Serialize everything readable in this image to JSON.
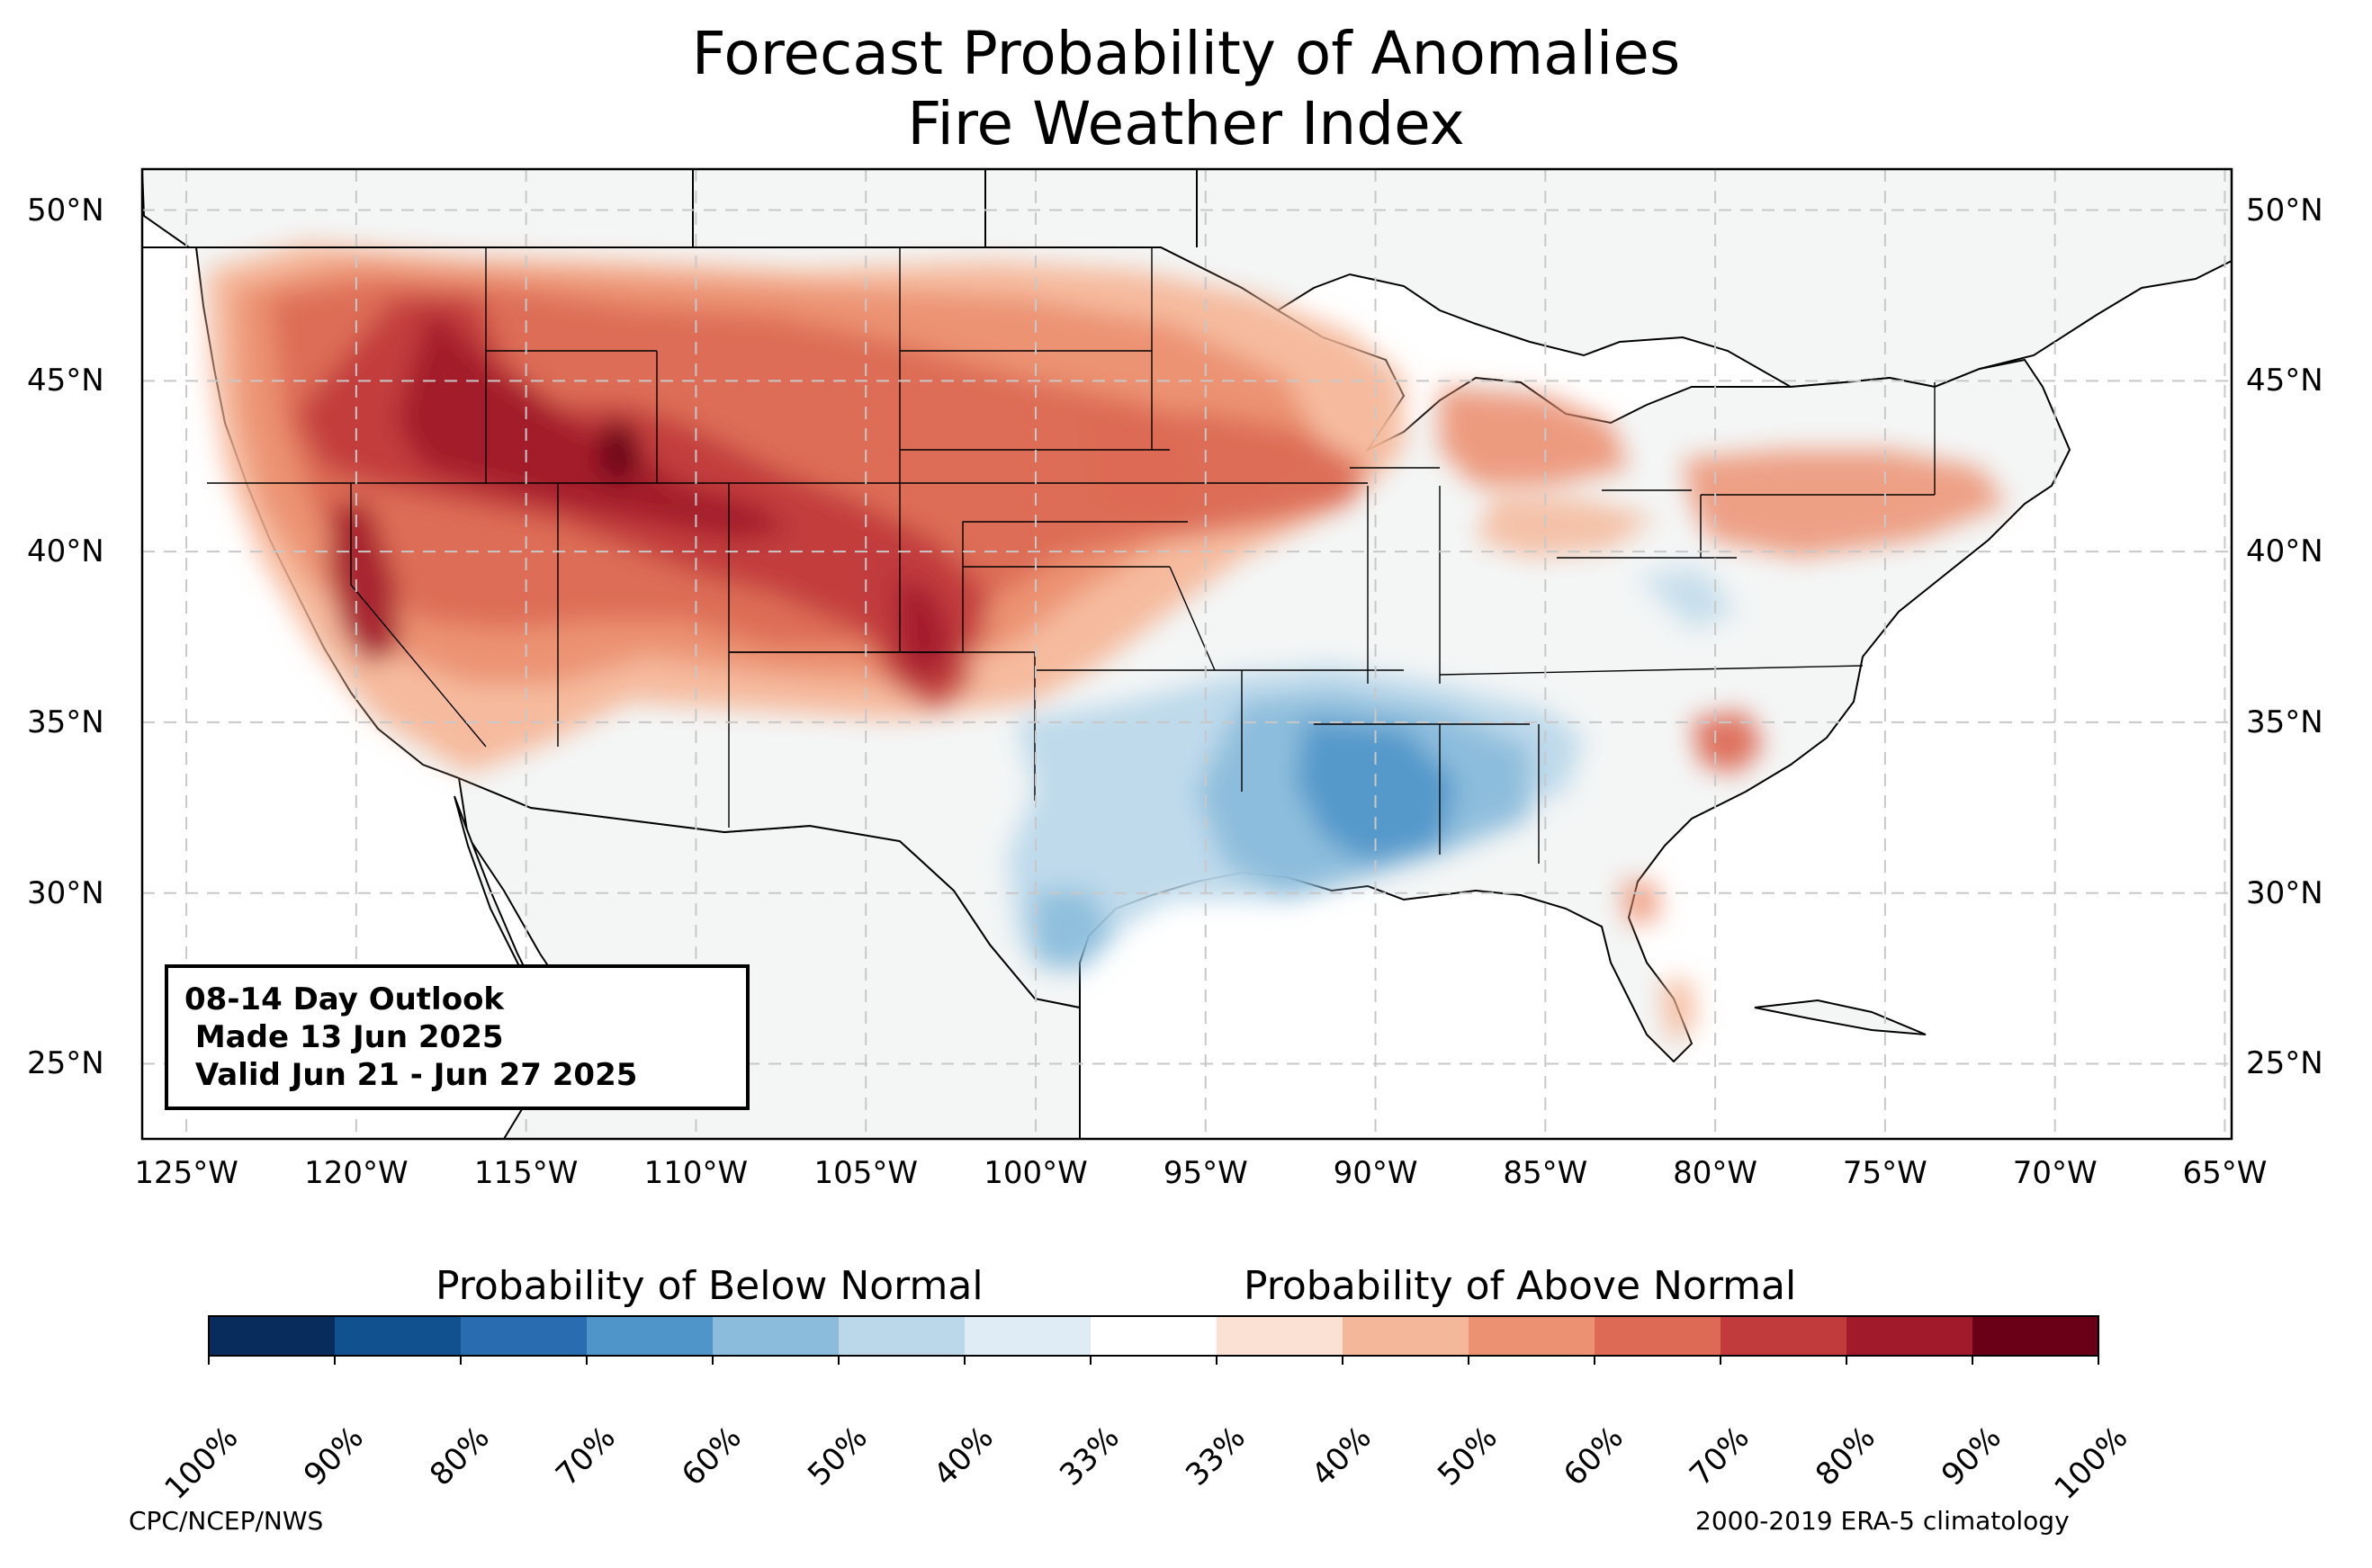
{
  "title": {
    "line1": "Forecast Probability of Anomalies",
    "line2": "Fire Weather Index"
  },
  "map": {
    "lon_range": [
      -126.3,
      -64.8
    ],
    "lat_range": [
      22.8,
      51.2
    ],
    "lat_labels": [
      "50°N",
      "45°N",
      "40°N",
      "35°N",
      "30°N",
      "25°N"
    ],
    "lat_values": [
      50,
      45,
      40,
      35,
      30,
      25
    ],
    "lon_labels": [
      "125°W",
      "120°W",
      "115°W",
      "110°W",
      "105°W",
      "100°W",
      "95°W",
      "90°W",
      "85°W",
      "80°W",
      "75°W",
      "70°W",
      "65°W"
    ],
    "lon_values": [
      -125,
      -120,
      -115,
      -110,
      -105,
      -100,
      -95,
      -90,
      -85,
      -80,
      -75,
      -70,
      -65
    ],
    "gridlines": true,
    "land_color": "#f4f6f6",
    "ocean_color": "#ffffff"
  },
  "outlook": {
    "line1": "08-14 Day Outlook",
    "line2": " Made 13 Jun 2025",
    "line3": " Valid Jun 21 - Jun 27 2025"
  },
  "colorbar": {
    "below_label": "Probability of Below Normal",
    "above_label": "Probability of Above Normal",
    "ticks": [
      "100%",
      "90%",
      "80%",
      "70%",
      "60%",
      "50%",
      "40%",
      "33%",
      "33%",
      "40%",
      "50%",
      "60%",
      "70%",
      "80%",
      "90%",
      "100%"
    ],
    "colors": [
      "#082c5c",
      "#11518f",
      "#2a6cb0",
      "#4f95c9",
      "#8bbcdb",
      "#bbd8ea",
      "#e0ecf5",
      "#ffffff",
      "#fbe1d3",
      "#f5b799",
      "#ec9172",
      "#dc6a55",
      "#c13b3c",
      "#a11a2b",
      "#690018"
    ]
  },
  "footer": {
    "left": "CPC/NCEP/NWS",
    "right": "2000-2019 ERA-5 climatology"
  }
}
